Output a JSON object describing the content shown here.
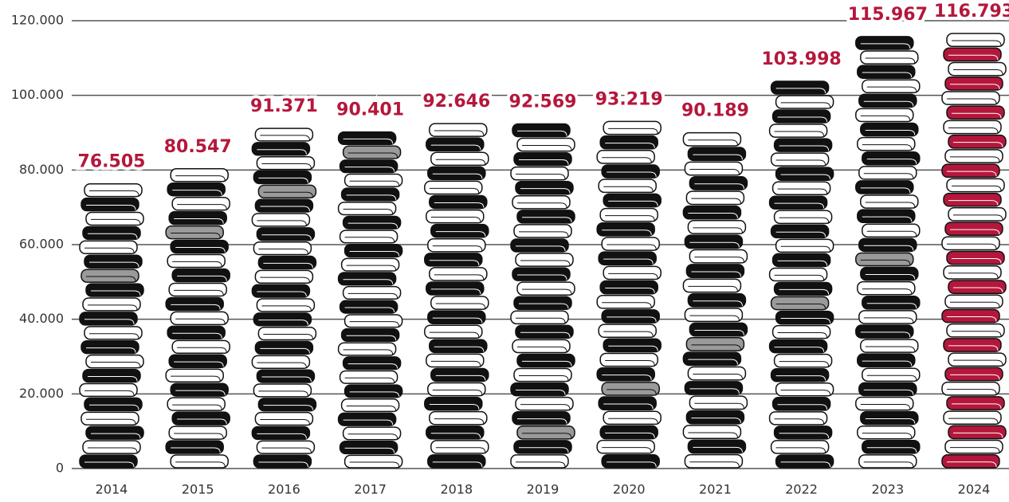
{
  "chart_data": {
    "type": "bar",
    "categories": [
      "2014",
      "2015",
      "2016",
      "2017",
      "2018",
      "2019",
      "2020",
      "2021",
      "2022",
      "2023",
      "2024"
    ],
    "values": [
      76505,
      80547,
      91371,
      90401,
      92646,
      92569,
      93219,
      90189,
      103998,
      115967,
      116793
    ],
    "value_labels": [
      "76.505",
      "80.547",
      "91.371",
      "90.401",
      "92.646",
      "92.569",
      "93.219",
      "90.189",
      "103.998",
      "115.967",
      "116.793"
    ],
    "colors": [
      "#111111",
      "#111111",
      "#111111",
      "#111111",
      "#111111",
      "#111111",
      "#111111",
      "#111111",
      "#111111",
      "#111111",
      "#b5173c"
    ],
    "label_color": "#b5173c",
    "ylim": [
      0,
      120000
    ],
    "yticks": [
      0,
      {
        "value": 20000,
        "label": "20.000"
      },
      {
        "value": 40000,
        "label": "40.000"
      },
      {
        "value": 60000,
        "label": "60.000"
      },
      {
        "value": 80000,
        "label": "80.000"
      },
      {
        "value": 100000,
        "label": "100.000"
      },
      {
        "value": 120000,
        "label": "120.000"
      }
    ],
    "grid": true
  }
}
